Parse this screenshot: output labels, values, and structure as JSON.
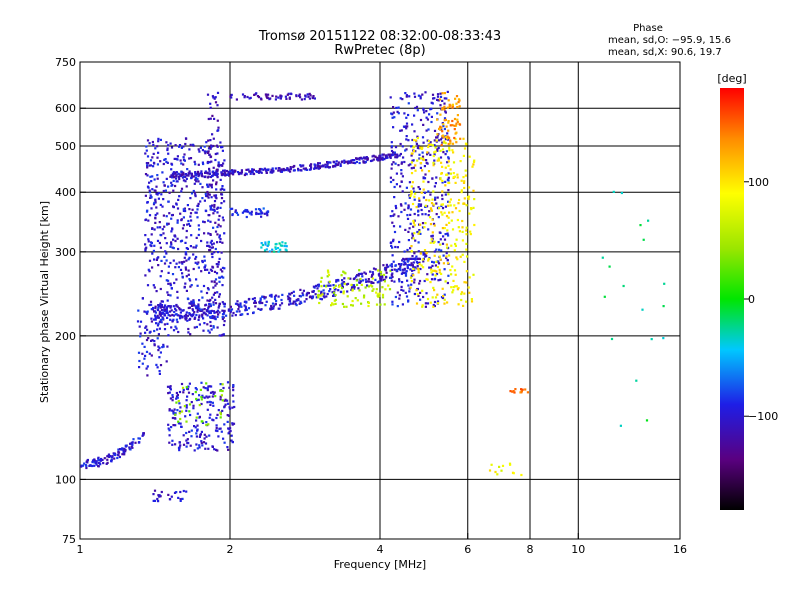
{
  "chart_data": {
    "type": "scatter",
    "title": "Tromsø 20151122 08:32:00-08:33:43",
    "subtitle": "RwPretec (8p)",
    "xlabel": "Frequency [MHz]",
    "ylabel": "Stationary phase Virtual Height [km]",
    "xscale": "log",
    "yscale": "log",
    "xlim": [
      1,
      16
    ],
    "ylim": [
      75,
      750
    ],
    "xticks": [
      1,
      2,
      4,
      6,
      8,
      10,
      16
    ],
    "xtick_labels": [
      "1",
      "2",
      "4",
      "6",
      "8",
      "10",
      "16"
    ],
    "xgrid": [
      2,
      4,
      6,
      8,
      10
    ],
    "yticks": [
      75,
      100,
      200,
      300,
      400,
      500,
      600,
      750
    ],
    "ytick_labels": [
      "75",
      "100",
      "200",
      "300",
      "400",
      "500",
      "600",
      "750"
    ],
    "ygrid": [
      100,
      200,
      300,
      400,
      500,
      600
    ],
    "grid": true,
    "stats": {
      "heading": "Phase",
      "line_o": "mean, sd,O: −95.9, 15.6",
      "line_x": "mean, sd,X:  90.6, 19.7"
    },
    "colorbar": {
      "label": "[deg]",
      "range": [
        -180,
        180
      ],
      "ticks": [
        100,
        0,
        -100
      ],
      "tick_labels": [
        "100",
        "0",
        "−100"
      ]
    },
    "clusters": [
      {
        "name": "low-layer",
        "f": [
          1.0,
          1.35
        ],
        "h": [
          105,
          125
        ],
        "phase": -100,
        "n": 110,
        "curve": "rise"
      },
      {
        "name": "low-echo-1",
        "f": [
          1.5,
          2.05
        ],
        "h": [
          115,
          160
        ],
        "phase": -100,
        "n": 220
      },
      {
        "name": "low-echo-1b",
        "f": [
          1.55,
          1.95
        ],
        "h": [
          130,
          160
        ],
        "phase": 40,
        "n": 35
      },
      {
        "name": "low-echo-2",
        "f": [
          1.4,
          1.65
        ],
        "h": [
          90,
          95
        ],
        "phase": -100,
        "n": 25
      },
      {
        "name": "e-trace",
        "f": [
          1.3,
          1.5
        ],
        "h": [
          165,
          240
        ],
        "phase": -100,
        "n": 70
      },
      {
        "name": "f-low-stack",
        "f": [
          1.35,
          1.95
        ],
        "h": [
          200,
          520
        ],
        "phase": -100,
        "n": 650
      },
      {
        "name": "f-col-2",
        "f": [
          1.8,
          1.9
        ],
        "h": [
          240,
          650
        ],
        "phase": -110,
        "n": 80
      },
      {
        "name": "f1-trace",
        "f": [
          1.4,
          4.9
        ],
        "h": [
          215,
          290
        ],
        "phase": -100,
        "n": 450,
        "curve": "rise"
      },
      {
        "name": "f1-trace-warm",
        "f": [
          3.0,
          4.2
        ],
        "h": [
          230,
          275
        ],
        "phase": 60,
        "n": 90
      },
      {
        "name": "f2-trace",
        "f": [
          1.5,
          4.4
        ],
        "h": [
          430,
          480
        ],
        "phase": -105,
        "n": 350,
        "curve": "rise"
      },
      {
        "name": "f2-top",
        "f": [
          2.0,
          3.0
        ],
        "h": [
          625,
          645
        ],
        "phase": -110,
        "n": 60
      },
      {
        "name": "f2-mid",
        "f": [
          2.0,
          2.4
        ],
        "h": [
          355,
          370
        ],
        "phase": -90,
        "n": 40
      },
      {
        "name": "cyan-patch",
        "f": [
          2.3,
          2.6
        ],
        "h": [
          300,
          315
        ],
        "phase": -40,
        "n": 30
      },
      {
        "name": "cusp-blue",
        "f": [
          4.2,
          5.5
        ],
        "h": [
          230,
          650
        ],
        "phase": -100,
        "n": 450
      },
      {
        "name": "cusp-yellow",
        "f": [
          4.6,
          6.2
        ],
        "h": [
          230,
          520
        ],
        "phase": 95,
        "n": 300
      },
      {
        "name": "cusp-orange",
        "f": [
          5.2,
          5.8
        ],
        "h": [
          500,
          650
        ],
        "phase": 130,
        "n": 70
      },
      {
        "name": "scatter-red",
        "f": [
          7.3,
          8.1
        ],
        "h": [
          152,
          155
        ],
        "phase": 145,
        "n": 12
      },
      {
        "name": "scatter-yellow",
        "f": [
          6.5,
          7.9
        ],
        "h": [
          102,
          108
        ],
        "phase": 90,
        "n": 12
      },
      {
        "name": "high-freq",
        "f": [
          11,
          15
        ],
        "h": [
          120,
          420
        ],
        "phase": -20,
        "n": 18
      }
    ]
  }
}
